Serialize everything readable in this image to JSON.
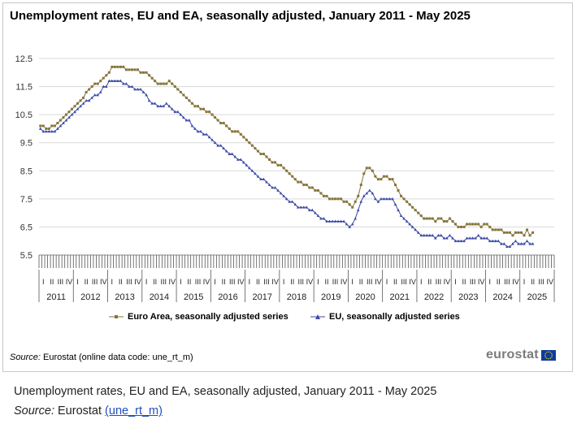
{
  "title": "Unemployment rates, EU and EA, seasonally adjusted, January 2011 - May 2025",
  "source_label": "Source:",
  "source_text": "Eurostat (online data code: une_rt_m)",
  "logo_text": "eurostat",
  "caption": {
    "title": "Unemployment rates, EU and EA, seasonally adjusted, January 2011 - May 2025",
    "source_label": "Source:",
    "source_text": "Eurostat",
    "link_text": "(une_rt_m)"
  },
  "colors": {
    "euro_area": "#86743a",
    "eu": "#3d4aa6",
    "grid": "#d9d9d9",
    "flag": "#0d3b9e",
    "link": "#1f4fbf"
  },
  "chart_data": {
    "type": "line",
    "title": "Unemployment rates, EU and EA, seasonally adjusted, January 2011 - May 2025",
    "xlabel": "",
    "ylabel": "",
    "ylim": [
      5.5,
      12.5
    ],
    "yticks": [
      5.5,
      6.5,
      7.5,
      8.5,
      9.5,
      10.5,
      11.5,
      12.5
    ],
    "year_labels": [
      "2011",
      "2012",
      "2013",
      "2014",
      "2015",
      "2016",
      "2017",
      "2018",
      "2019",
      "2020",
      "2021",
      "2022",
      "2023",
      "2024",
      "2025"
    ],
    "quarter_labels": [
      "I",
      "II",
      "III",
      "IV"
    ],
    "x_start": "2011-01",
    "x_end": "2025-05",
    "grid": true,
    "legend_position": "bottom",
    "series": [
      {
        "name": "Euro Area, seasonally adjusted series",
        "monthly_values": [
          10.1,
          10.1,
          10.0,
          10.0,
          10.1,
          10.1,
          10.2,
          10.3,
          10.4,
          10.5,
          10.6,
          10.7,
          10.8,
          10.9,
          11.0,
          11.1,
          11.3,
          11.4,
          11.5,
          11.6,
          11.6,
          11.7,
          11.8,
          11.9,
          12.0,
          12.2,
          12.2,
          12.2,
          12.2,
          12.2,
          12.1,
          12.1,
          12.1,
          12.1,
          12.1,
          12.0,
          12.0,
          12.0,
          11.9,
          11.8,
          11.7,
          11.6,
          11.6,
          11.6,
          11.6,
          11.7,
          11.6,
          11.5,
          11.4,
          11.3,
          11.2,
          11.1,
          11.0,
          10.9,
          10.8,
          10.8,
          10.7,
          10.7,
          10.6,
          10.6,
          10.5,
          10.4,
          10.3,
          10.2,
          10.2,
          10.1,
          10.0,
          9.9,
          9.9,
          9.9,
          9.8,
          9.7,
          9.6,
          9.5,
          9.4,
          9.3,
          9.2,
          9.1,
          9.1,
          9.0,
          8.9,
          8.8,
          8.8,
          8.7,
          8.7,
          8.6,
          8.5,
          8.4,
          8.3,
          8.2,
          8.1,
          8.1,
          8.0,
          8.0,
          7.9,
          7.9,
          7.8,
          7.8,
          7.7,
          7.6,
          7.6,
          7.5,
          7.5,
          7.5,
          7.5,
          7.5,
          7.4,
          7.4,
          7.3,
          7.2,
          7.4,
          7.6,
          8.0,
          8.4,
          8.6,
          8.6,
          8.5,
          8.3,
          8.2,
          8.2,
          8.3,
          8.3,
          8.2,
          8.2,
          8.0,
          7.8,
          7.6,
          7.5,
          7.4,
          7.3,
          7.2,
          7.1,
          7.0,
          6.9,
          6.8,
          6.8,
          6.8,
          6.8,
          6.7,
          6.8,
          6.8,
          6.7,
          6.7,
          6.8,
          6.7,
          6.6,
          6.5,
          6.5,
          6.5,
          6.6,
          6.6,
          6.6,
          6.6,
          6.6,
          6.5,
          6.6,
          6.6,
          6.5,
          6.4,
          6.4,
          6.4,
          6.4,
          6.3,
          6.3,
          6.3,
          6.2,
          6.3,
          6.3,
          6.3,
          6.2,
          6.4,
          6.2,
          6.3
        ]
      },
      {
        "name": "EU, seasonally adjusted series",
        "monthly_values": [
          10.0,
          9.9,
          9.9,
          9.9,
          9.9,
          9.9,
          10.0,
          10.1,
          10.2,
          10.3,
          10.4,
          10.5,
          10.6,
          10.7,
          10.8,
          10.9,
          11.0,
          11.0,
          11.1,
          11.2,
          11.2,
          11.3,
          11.5,
          11.5,
          11.7,
          11.7,
          11.7,
          11.7,
          11.7,
          11.6,
          11.6,
          11.5,
          11.5,
          11.4,
          11.4,
          11.4,
          11.3,
          11.2,
          11.0,
          10.9,
          10.9,
          10.8,
          10.8,
          10.8,
          10.9,
          10.8,
          10.7,
          10.6,
          10.6,
          10.5,
          10.4,
          10.3,
          10.3,
          10.1,
          10.0,
          9.9,
          9.9,
          9.8,
          9.8,
          9.7,
          9.6,
          9.5,
          9.4,
          9.4,
          9.3,
          9.2,
          9.1,
          9.1,
          9.0,
          8.9,
          8.9,
          8.8,
          8.7,
          8.6,
          8.5,
          8.4,
          8.3,
          8.2,
          8.2,
          8.1,
          8.0,
          7.9,
          7.9,
          7.8,
          7.7,
          7.6,
          7.5,
          7.4,
          7.4,
          7.3,
          7.2,
          7.2,
          7.2,
          7.2,
          7.1,
          7.1,
          7.0,
          6.9,
          6.8,
          6.8,
          6.7,
          6.7,
          6.7,
          6.7,
          6.7,
          6.7,
          6.7,
          6.6,
          6.5,
          6.6,
          6.8,
          7.1,
          7.4,
          7.6,
          7.7,
          7.8,
          7.7,
          7.5,
          7.4,
          7.5,
          7.5,
          7.5,
          7.5,
          7.5,
          7.3,
          7.1,
          6.9,
          6.8,
          6.7,
          6.6,
          6.5,
          6.4,
          6.3,
          6.2,
          6.2,
          6.2,
          6.2,
          6.2,
          6.1,
          6.2,
          6.2,
          6.1,
          6.1,
          6.2,
          6.1,
          6.0,
          6.0,
          6.0,
          6.0,
          6.1,
          6.1,
          6.1,
          6.1,
          6.2,
          6.1,
          6.1,
          6.1,
          6.0,
          6.0,
          6.0,
          6.0,
          5.9,
          5.9,
          5.8,
          5.8,
          5.9,
          6.0,
          5.9,
          5.9,
          5.9,
          6.0,
          5.9,
          5.9
        ]
      }
    ]
  }
}
